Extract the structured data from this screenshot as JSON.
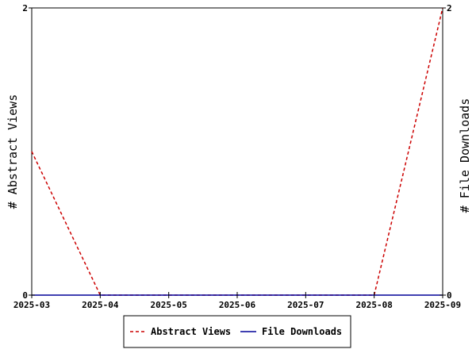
{
  "chart_data": {
    "type": "line",
    "x": [
      "2025-03",
      "2025-04",
      "2025-05",
      "2025-06",
      "2025-07",
      "2025-08",
      "2025-09"
    ],
    "series": [
      {
        "name": "Abstract Views",
        "axis": "left",
        "color": "#cc0000",
        "style": "dashed",
        "values": [
          1,
          0,
          0,
          0,
          0,
          0,
          2
        ]
      },
      {
        "name": "File Downloads",
        "axis": "right",
        "color": "#000099",
        "style": "solid",
        "values": [
          0,
          0,
          0,
          0,
          0,
          0,
          0
        ]
      }
    ],
    "ylabel_left": "# Abstract Views",
    "ylabel_right": "# File Downloads",
    "ylim_left": [
      0,
      2
    ],
    "ylim_right": [
      0,
      2
    ],
    "yticks_left": [
      "0",
      "2"
    ],
    "yticks_right": [
      "0",
      "2"
    ],
    "grid": false,
    "legend": "bottom"
  }
}
